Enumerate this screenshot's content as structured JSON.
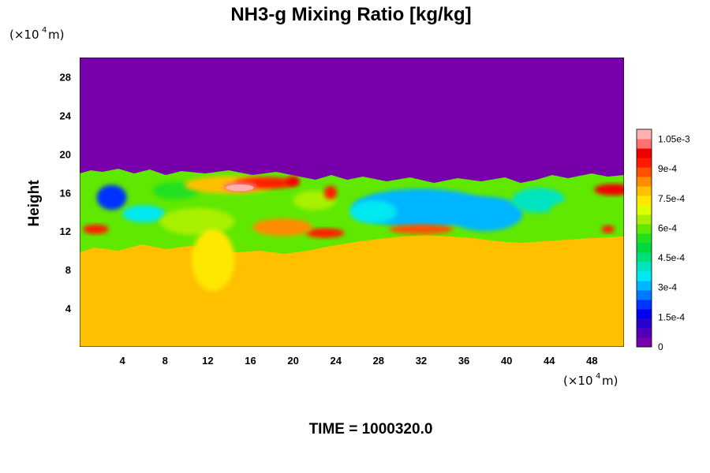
{
  "chart_data": {
    "type": "heatmap",
    "title": "NH3-g Mixing Ratio [kg/kg]",
    "ylabel": "Height",
    "xlabel": "",
    "y_unit": {
      "prefix": "(×10",
      "exp": "4",
      "suffix": " m)"
    },
    "x_unit": {
      "prefix": "(×10",
      "exp": "4",
      "suffix": " m)"
    },
    "xlim": [
      0,
      51
    ],
    "ylim": [
      0,
      30
    ],
    "x_ticks": [
      "4",
      "8",
      "12",
      "16",
      "20",
      "24",
      "28",
      "32",
      "36",
      "40",
      "44",
      "48"
    ],
    "x_tick_values": [
      4,
      8,
      12,
      16,
      20,
      24,
      28,
      32,
      36,
      40,
      44,
      48
    ],
    "y_ticks": [
      "4",
      "8",
      "12",
      "16",
      "20",
      "24",
      "28"
    ],
    "y_tick_values": [
      4,
      8,
      12,
      16,
      20,
      24,
      28
    ],
    "colorbar": {
      "range": [
        0,
        0.0011
      ],
      "labels": [
        "0",
        "1.5e-4",
        "3e-4",
        "4.5e-4",
        "6e-4",
        "7.5e-4",
        "9e-4",
        "1.05e-3"
      ],
      "label_values": [
        0,
        0.00015,
        0.0003,
        0.00045,
        0.0006,
        0.00075,
        0.0009,
        0.00105
      ],
      "colors": [
        "#7700aa",
        "#5200b8",
        "#2a00cc",
        "#0000ee",
        "#0033ff",
        "#0077ff",
        "#00b5ff",
        "#00e8f0",
        "#00e5c0",
        "#00e07a",
        "#00d840",
        "#20e020",
        "#60e800",
        "#a8f000",
        "#ddff00",
        "#ffe800",
        "#ffc000",
        "#ff8c00",
        "#ff5000",
        "#ff1a00",
        "#f00000",
        "#ff7070",
        "#ffb0b0"
      ]
    },
    "fields": {
      "upper_value": 0,
      "lower_value": 0.00079,
      "lower_top_height": 10,
      "mixed_layer_top_height": 18,
      "peak_value": 0.0011,
      "peak_location": [
        15,
        16.5
      ]
    }
  },
  "footer": {
    "time_label": "TIME = 1000320.0"
  }
}
